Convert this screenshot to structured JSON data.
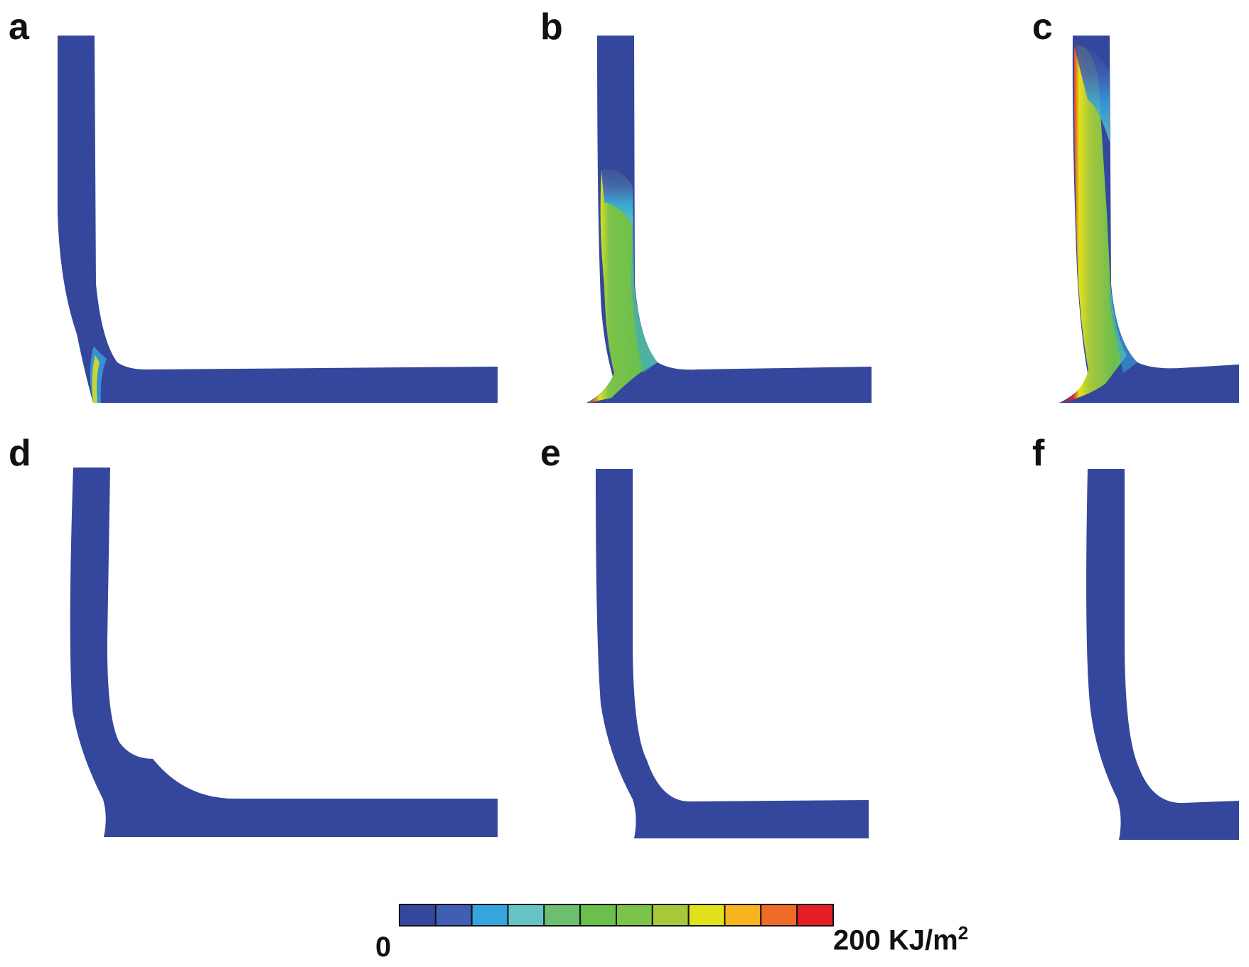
{
  "panels": [
    {
      "label": "a",
      "energy_field": "negligible — uniform low level, slight rise at fillet root"
    },
    {
      "label": "b",
      "energy_field": "concentrated along left edge of vertical stem, up to about half its height"
    },
    {
      "label": "c",
      "energy_field": "concentrated along left edge of vertical stem over its full height"
    },
    {
      "label": "d",
      "energy_field": "uniform low level"
    },
    {
      "label": "e",
      "energy_field": "uniform low level"
    },
    {
      "label": "f",
      "energy_field": "uniform low level"
    }
  ],
  "colorbar": {
    "min_label": "0",
    "max_label": "200 KJ/m",
    "max_label_exponent": "2",
    "colors": [
      "#35479c",
      "#3f5fb5",
      "#34a5dd",
      "#66c4c6",
      "#6cbf70",
      "#6bbf4c",
      "#7cc34a",
      "#a8c83c",
      "#e2e21b",
      "#f7b41e",
      "#ee6c27",
      "#e41e26"
    ]
  },
  "colors": {
    "background": "#ffffff",
    "base_field": "#35479c",
    "high_field": "#e41e26"
  }
}
